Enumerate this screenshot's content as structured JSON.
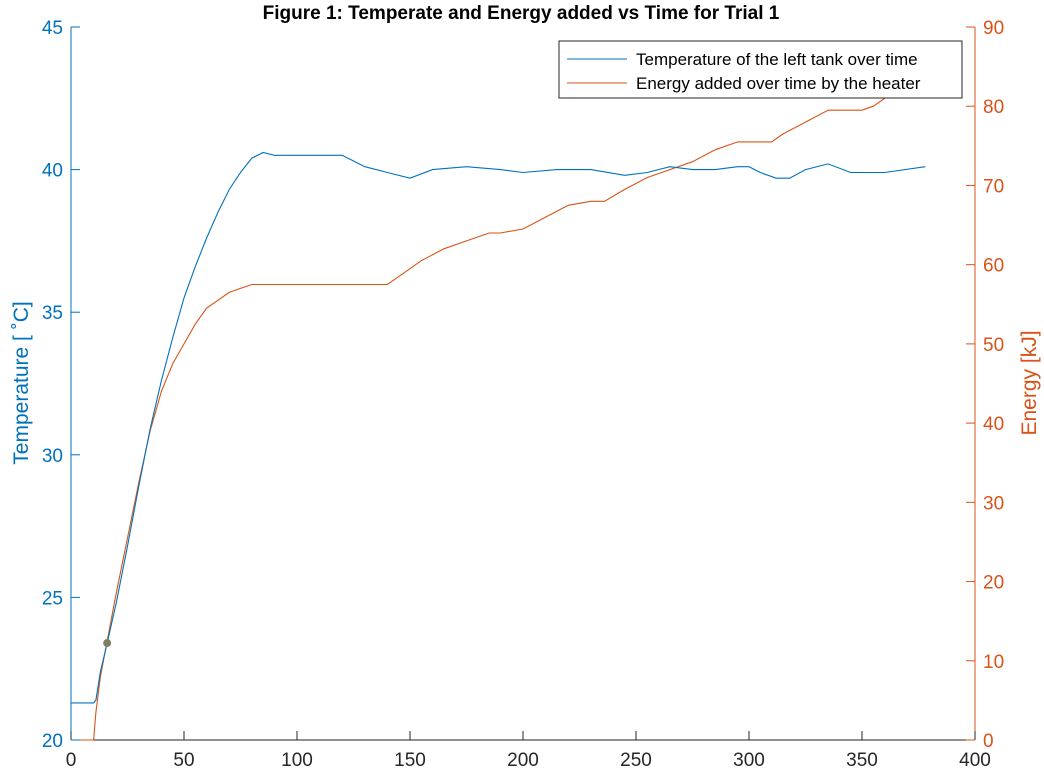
{
  "colors": {
    "left_axis": "#0072BD",
    "right_axis": "#D95319",
    "temperature_line": "#0072BD",
    "energy_line": "#D95319",
    "marker": "#7F7F5F",
    "axes": "#262626"
  },
  "chart_data": {
    "type": "line",
    "title": "Figure 1: Temperate and Energy added vs Time for Trial 1",
    "x_axis": {
      "label": "",
      "range": [
        0,
        400
      ],
      "ticks": [
        0,
        50,
        100,
        150,
        200,
        250,
        300,
        350,
        400
      ]
    },
    "y_left": {
      "label": "Temperature [ ˚C]",
      "range": [
        20,
        45
      ],
      "ticks": [
        20,
        25,
        30,
        35,
        40,
        45
      ]
    },
    "y_right": {
      "label": "Energy [kJ]",
      "range": [
        0,
        90
      ],
      "ticks": [
        0,
        10,
        20,
        30,
        40,
        50,
        60,
        70,
        80,
        90
      ]
    },
    "legend_placement": "top-right",
    "grid": false,
    "series": [
      {
        "name": "Temperature of the left tank over time",
        "axis": "left",
        "x": [
          0,
          5,
          10,
          11,
          13,
          16,
          20,
          25,
          30,
          35,
          40,
          45,
          50,
          55,
          60,
          65,
          70,
          75,
          80,
          85,
          90,
          100,
          110,
          120,
          125,
          130,
          140,
          150,
          160,
          175,
          190,
          200,
          215,
          230,
          245,
          255,
          265,
          275,
          285,
          295,
          300,
          305,
          312,
          318,
          325,
          335,
          345,
          360,
          378
        ],
        "y": [
          21.3,
          21.3,
          21.3,
          21.4,
          22.4,
          23.4,
          24.8,
          26.8,
          28.9,
          30.9,
          32.6,
          34.1,
          35.5,
          36.6,
          37.6,
          38.5,
          39.3,
          39.9,
          40.4,
          40.6,
          40.5,
          40.5,
          40.5,
          40.5,
          40.3,
          40.1,
          39.9,
          39.7,
          40.0,
          40.1,
          40.0,
          39.9,
          40.0,
          40.0,
          39.8,
          39.9,
          40.1,
          40.0,
          40.0,
          40.1,
          40.1,
          39.9,
          39.7,
          39.7,
          40.0,
          40.2,
          39.9,
          39.9,
          40.1
        ]
      },
      {
        "name": "Energy added over time by the heater",
        "axis": "right",
        "x": [
          0,
          10,
          11,
          13,
          16,
          20,
          25,
          30,
          35,
          40,
          45,
          50,
          55,
          60,
          65,
          70,
          75,
          80,
          83,
          90,
          100,
          120,
          140,
          145,
          155,
          165,
          175,
          185,
          190,
          200,
          210,
          220,
          230,
          236,
          245,
          255,
          265,
          275,
          285,
          295,
          300,
          310,
          315,
          325,
          335,
          350,
          355,
          365,
          370
        ],
        "y": [
          0,
          0,
          3.5,
          8,
          12.5,
          18.5,
          25.5,
          32.5,
          39,
          44,
          47.5,
          50,
          52.5,
          54.5,
          55.5,
          56.5,
          57,
          57.5,
          57.5,
          57.5,
          57.5,
          57.5,
          57.5,
          58.5,
          60.5,
          62,
          63,
          64,
          64,
          64.5,
          66,
          67.5,
          68,
          68,
          69.5,
          71,
          72,
          73,
          74.5,
          75.5,
          75.5,
          75.5,
          76.5,
          78,
          79.5,
          79.5,
          80,
          82,
          83.5
        ]
      },
      {
        "name": "",
        "axis": "left",
        "type": "scatter",
        "x": [
          16
        ],
        "y": [
          23.4
        ]
      }
    ]
  }
}
